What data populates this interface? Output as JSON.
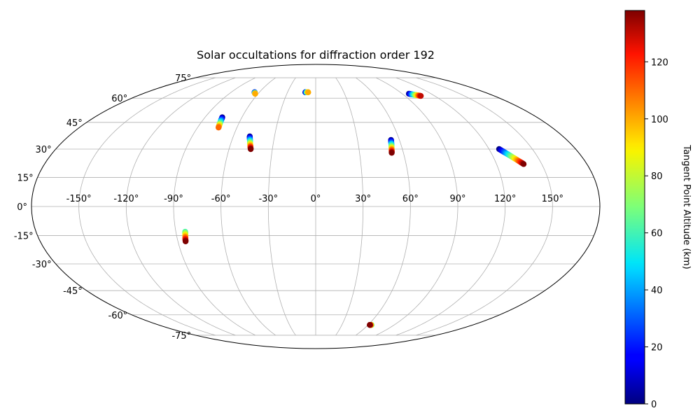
{
  "chart_data": {
    "type": "scatter",
    "projection": "mollweide",
    "title": "Solar occultations for diffraction order 192",
    "colormap": "jet",
    "grid": true,
    "lon_ticks": [
      -150,
      -120,
      -90,
      -60,
      -30,
      0,
      30,
      60,
      90,
      120,
      150
    ],
    "lon_tick_labels": [
      "-150°",
      "-120°",
      "-90°",
      "-60°",
      "-30°",
      "0°",
      "30°",
      "60°",
      "90°",
      "120°",
      "150°"
    ],
    "lat_ticks": [
      -75,
      -60,
      -45,
      -30,
      -15,
      0,
      15,
      30,
      45,
      60,
      75
    ],
    "lat_tick_labels": [
      "-75°",
      "-60°",
      "-45°",
      "-30°",
      "-15°",
      "0°",
      "15°",
      "30°",
      "45°",
      "60°",
      "75°"
    ],
    "colorbar": {
      "label": "Tangent Point Altitude (km)",
      "range": [
        0,
        138
      ],
      "ticks": [
        0,
        20,
        40,
        60,
        80,
        100,
        120
      ],
      "tick_labels": [
        "0",
        "20",
        "40",
        "60",
        "80",
        "100",
        "120"
      ],
      "position": "right"
    },
    "series": [
      {
        "lon_start": -65,
        "lat_start": 64,
        "alt_start": 0,
        "lon_end": -63,
        "lat_end": 63,
        "alt_end": 100
      },
      {
        "lon_start": -76,
        "lat_start": 48,
        "alt_start": 0,
        "lon_end": -74,
        "lat_end": 42,
        "alt_end": 110
      },
      {
        "lon_start": -48,
        "lat_start": 37,
        "alt_start": 0,
        "lon_end": -45,
        "lat_end": 30,
        "alt_end": 138
      },
      {
        "lon_start": -11,
        "lat_start": 64,
        "alt_start": 0,
        "lon_end": -8,
        "lat_end": 64,
        "alt_end": 100
      },
      {
        "lon_start": 54,
        "lat_start": 35,
        "alt_start": 0,
        "lon_end": 52,
        "lat_end": 28,
        "alt_end": 138
      },
      {
        "lon_start": 97,
        "lat_start": 63,
        "alt_start": 0,
        "lon_end": 106,
        "lat_end": 61.5,
        "alt_end": 130
      },
      {
        "lon_start": 127,
        "lat_start": 30,
        "alt_start": 0,
        "lon_end": 138,
        "lat_end": 22,
        "alt_end": 138
      },
      {
        "lon_start": -84,
        "lat_start": -13,
        "alt_start": 60,
        "lon_end": -85,
        "lat_end": -18,
        "alt_end": 138
      },
      {
        "lon_start": 64,
        "lat_start": -67,
        "alt_start": 60,
        "lon_end": 62,
        "lat_end": -67,
        "alt_end": 138
      }
    ]
  }
}
